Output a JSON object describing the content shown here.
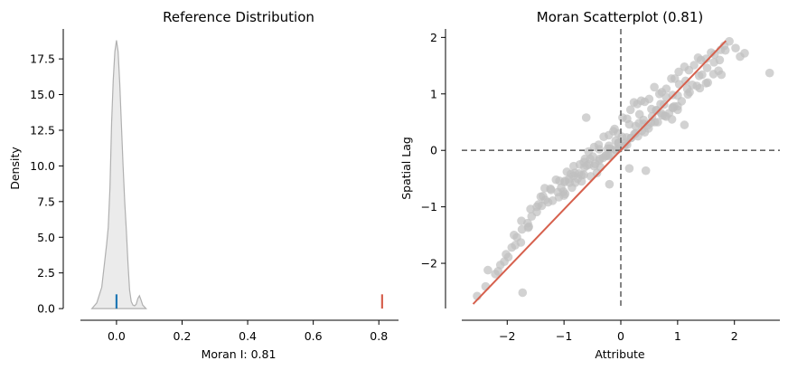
{
  "chart_data": [
    {
      "type": "area",
      "title": "Reference Distribution",
      "xlabel": "Moran I: 0.81",
      "ylabel": "Density",
      "xlim": [
        -0.11,
        0.86
      ],
      "ylim": [
        -0.5,
        19.6
      ],
      "xticks": [
        0.0,
        0.2,
        0.4,
        0.6,
        0.8
      ],
      "xtick_labels": [
        "0.0",
        "0.2",
        "0.4",
        "0.6",
        "0.8"
      ],
      "yticks": [
        0.0,
        2.5,
        5.0,
        7.5,
        10.0,
        12.5,
        15.0,
        17.5
      ],
      "ytick_labels": [
        "0.0",
        "2.5",
        "5.0",
        "7.5",
        "10.0",
        "12.5",
        "15.0",
        "17.5"
      ],
      "grid": false,
      "density": {
        "x": [
          -0.075,
          -0.06,
          -0.045,
          -0.035,
          -0.03,
          -0.025,
          -0.02,
          -0.015,
          -0.01,
          -0.005,
          0.0,
          0.005,
          0.01,
          0.015,
          0.02,
          0.025,
          0.03,
          0.035,
          0.04,
          0.045,
          0.05,
          0.055,
          0.06,
          0.065,
          0.07,
          0.075,
          0.08,
          0.09
        ],
        "y": [
          0.0,
          0.4,
          1.5,
          3.5,
          4.5,
          5.7,
          8.5,
          13.0,
          16.0,
          18.0,
          18.8,
          18.0,
          15.8,
          12.8,
          10.0,
          7.5,
          5.5,
          3.2,
          1.3,
          0.5,
          0.25,
          0.2,
          0.3,
          0.7,
          0.9,
          0.6,
          0.25,
          0.0
        ]
      },
      "markers": [
        {
          "name": "mean",
          "x": 0.0,
          "height": 1.0,
          "color": "#1f77b4"
        },
        {
          "name": "observed",
          "x": 0.81,
          "height": 1.0,
          "color": "#d6604d"
        }
      ],
      "colors": {
        "fill": "#d3d3d3",
        "line": "#b0b0b0"
      }
    },
    {
      "type": "scatter",
      "title": "Moran Scatterplot (0.81)",
      "xlabel": "Attribute",
      "ylabel": "Spatial Lag",
      "xlim": [
        -2.8,
        2.8
      ],
      "ylim": [
        -2.8,
        2.15
      ],
      "xticks": [
        -2,
        -1,
        0,
        1,
        2
      ],
      "xtick_labels": [
        "−2",
        "−1",
        "0",
        "1",
        "2"
      ],
      "yticks": [
        -2,
        -1,
        0,
        1,
        2
      ],
      "ytick_labels": [
        "−2",
        "−1",
        "0",
        "1",
        "2"
      ],
      "grid": false,
      "fit_line": {
        "x": [
          -2.6,
          1.85
        ],
        "y": [
          -2.72,
          1.94
        ],
        "slope": 0.81
      },
      "reference_lines": {
        "x": 0,
        "y": 0
      },
      "colors": {
        "points": "#bfbfbf",
        "fit": "#d6604d",
        "reference": "#666666"
      },
      "points": {
        "x": [
          -2.53,
          -2.38,
          -2.34,
          -2.21,
          -2.12,
          -2.05,
          -1.98,
          -1.92,
          -1.86,
          -1.83,
          -1.74,
          -1.64,
          -1.63,
          -1.57,
          -1.48,
          -1.41,
          -1.34,
          -1.23,
          -1.14,
          -1.08,
          -0.98,
          -0.95,
          -0.88,
          -0.83,
          -0.72,
          -0.65,
          -0.57,
          -0.47,
          -0.39,
          -0.3,
          -0.21,
          -0.13,
          -0.11,
          -0.05,
          0.03,
          0.11,
          0.17,
          0.23,
          0.29,
          0.36,
          0.42,
          0.5,
          0.59,
          0.68,
          0.72,
          0.8,
          0.89,
          0.95,
          1.02,
          1.12,
          1.2,
          1.29,
          1.36,
          1.41,
          1.5,
          1.59,
          1.65,
          1.76,
          1.82,
          1.91,
          2.02,
          2.1,
          2.18,
          2.62,
          -2.16,
          -2.02,
          -1.76,
          -1.75,
          -1.59,
          -1.45,
          -1.37,
          -1.24,
          -1.11,
          -1.05,
          -0.9,
          -0.83,
          -0.81,
          -0.65,
          -0.63,
          -0.49,
          -0.38,
          -0.23,
          -0.19,
          -0.09,
          0.02,
          0.15,
          0.26,
          0.33,
          0.4,
          0.54,
          0.62,
          0.7,
          0.8,
          0.91,
          1.0,
          1.03,
          1.14,
          1.26,
          1.38,
          1.43,
          1.52,
          1.64,
          1.74,
          1.84,
          -1.88,
          -1.62,
          -1.48,
          -1.33,
          -1.2,
          -1.01,
          -0.91,
          -0.74,
          -0.6,
          -0.47,
          -0.31,
          -0.21,
          -0.04,
          0.1,
          0.18,
          0.32,
          0.49,
          0.63,
          0.76,
          0.91,
          1.07,
          1.17,
          1.34,
          1.5,
          1.63,
          1.77,
          -1.39,
          -1.28,
          -1.09,
          -0.98,
          -0.8,
          -0.69,
          -0.53,
          -0.36,
          -0.27,
          -0.1,
          0.06,
          0.24,
          0.42,
          0.53,
          0.71,
          0.85,
          1.0,
          1.21,
          1.39,
          1.53,
          1.72,
          -0.99,
          -0.86,
          -0.69,
          -0.56,
          -0.37,
          -0.18,
          -0.03,
          0.11,
          0.3,
          0.47,
          0.65,
          0.8,
          1.0,
          1.18,
          -0.76,
          -0.64,
          -0.45,
          -0.26,
          -0.08,
          0.09,
          0.26,
          0.4,
          0.6,
          0.77,
          0.94,
          -0.42,
          -0.22,
          -0.04,
          0.18,
          0.37,
          0.55,
          0.73,
          0.92,
          -1.73,
          -0.61,
          0.44,
          0.9,
          1.12,
          -0.38,
          0.15,
          -1.0,
          -0.2,
          -0.54
        ],
        "y": [
          -2.58,
          -2.41,
          -2.12,
          -2.19,
          -2.03,
          -1.97,
          -1.89,
          -1.72,
          -1.68,
          -1.54,
          -1.4,
          -1.29,
          -1.37,
          -1.17,
          -1.0,
          -0.82,
          -0.67,
          -0.7,
          -0.52,
          -0.54,
          -0.54,
          -0.38,
          -0.42,
          -0.28,
          -0.25,
          -0.21,
          -0.02,
          0.06,
          0.1,
          0.24,
          0.27,
          0.34,
          0.38,
          0.3,
          0.58,
          0.56,
          0.72,
          0.85,
          0.82,
          0.88,
          0.86,
          0.91,
          1.12,
          1.0,
          1.03,
          1.09,
          1.27,
          1.27,
          1.39,
          1.48,
          1.42,
          1.51,
          1.64,
          1.6,
          1.62,
          1.73,
          1.7,
          1.78,
          1.85,
          1.93,
          1.81,
          1.66,
          1.72,
          1.37,
          -2.14,
          -1.84,
          -1.63,
          -1.25,
          -1.04,
          -0.96,
          -0.81,
          -0.68,
          -0.74,
          -0.66,
          -0.57,
          -0.45,
          -0.4,
          -0.43,
          -0.15,
          -0.11,
          0.02,
          0.03,
          0.03,
          0.17,
          0.24,
          0.46,
          0.43,
          0.64,
          0.54,
          0.73,
          0.71,
          0.82,
          0.94,
          0.98,
          0.97,
          1.17,
          1.23,
          1.16,
          1.32,
          1.34,
          1.46,
          1.56,
          1.6,
          1.77,
          -1.5,
          -1.35,
          -1.09,
          -0.88,
          -0.89,
          -0.73,
          -0.51,
          -0.41,
          -0.27,
          -0.28,
          -0.13,
          0.08,
          0.14,
          0.23,
          0.22,
          0.48,
          0.39,
          0.71,
          0.81,
          0.76,
          0.87,
          1.09,
          1.14,
          1.19,
          1.35,
          1.34,
          -0.98,
          -0.92,
          -0.83,
          -0.77,
          -0.57,
          -0.55,
          -0.46,
          -0.3,
          -0.1,
          0.02,
          0.08,
          0.29,
          0.32,
          0.49,
          0.66,
          0.66,
          0.78,
          1.03,
          1.1,
          1.2,
          1.41,
          -0.56,
          -0.66,
          -0.44,
          -0.25,
          -0.15,
          -0.08,
          0.03,
          0.1,
          0.25,
          0.44,
          0.5,
          0.6,
          0.72,
          0.99,
          -0.5,
          -0.3,
          -0.24,
          -0.09,
          0.0,
          0.14,
          0.3,
          0.47,
          0.5,
          0.61,
          0.78,
          -0.4,
          -0.1,
          0.12,
          0.22,
          0.35,
          0.6,
          0.62,
          0.75,
          -2.52,
          0.58,
          -0.36,
          0.55,
          0.45,
          -0.18,
          -0.32,
          -0.8,
          -0.6,
          -0.15
        ]
      }
    }
  ]
}
